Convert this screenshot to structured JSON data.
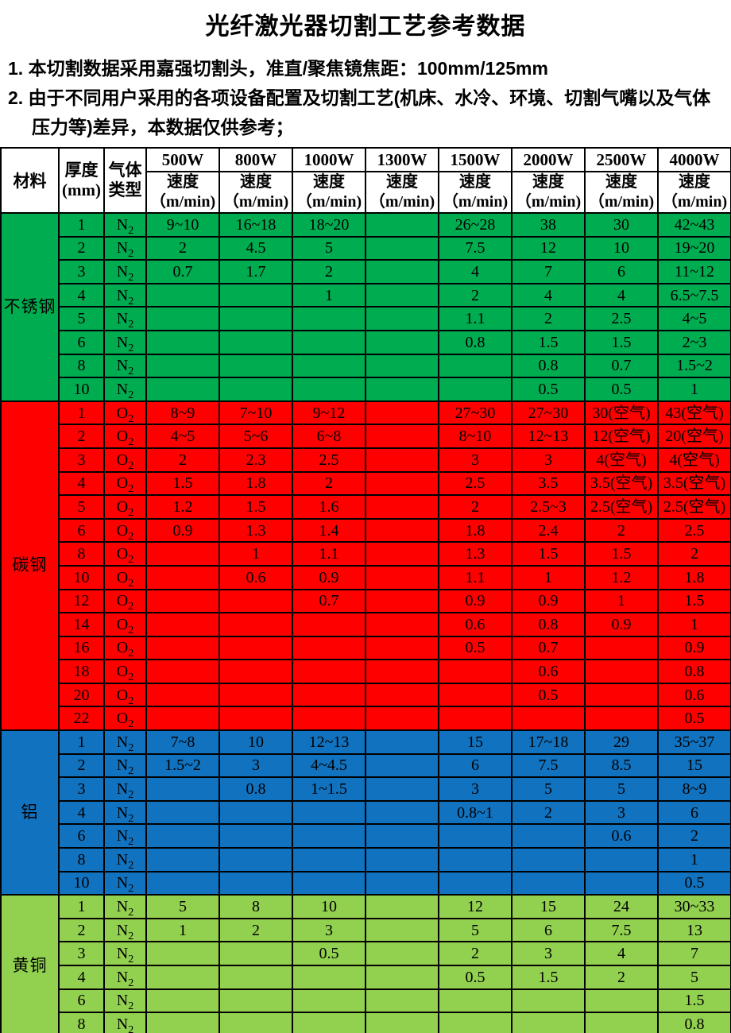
{
  "title": "光纤激光器切割工艺参考数据",
  "notes": [
    {
      "text": "1. 本切割数据采用嘉强切割头，准直/聚焦镜焦距：100mm/125mm"
    },
    {
      "text": "2. 由于不同用户采用的各项设备配置及切割工艺(机床、水冷、环境、切割气嘴以及气体压力等)差异，本数据仅供参考；"
    }
  ],
  "table": {
    "headers": {
      "material": "材料",
      "thickness_l1": "厚度",
      "thickness_l2": "(mm)",
      "gas_l1": "气体",
      "gas_l2": "类型"
    },
    "power_columns": [
      "500W",
      "800W",
      "1000W",
      "1300W",
      "1500W",
      "2000W",
      "2500W",
      "4000W"
    ],
    "speed_label": "速度",
    "speed_unit": "（m/min)",
    "materials": [
      {
        "name": "不锈钢",
        "color": "#00AC50",
        "gas_symbol": "N",
        "gas_subscript": "2",
        "rows": [
          {
            "thickness": "1",
            "speeds": [
              "9~10",
              "16~18",
              "18~20",
              "",
              "26~28",
              "38",
              "30",
              "42~43"
            ]
          },
          {
            "thickness": "2",
            "speeds": [
              "2",
              "4.5",
              "5",
              "",
              "7.5",
              "12",
              "10",
              "19~20"
            ]
          },
          {
            "thickness": "3",
            "speeds": [
              "0.7",
              "1.7",
              "2",
              "",
              "4",
              "7",
              "6",
              "11~12"
            ]
          },
          {
            "thickness": "4",
            "speeds": [
              "",
              "",
              "1",
              "",
              "2",
              "4",
              "4",
              "6.5~7.5"
            ]
          },
          {
            "thickness": "5",
            "speeds": [
              "",
              "",
              "",
              "",
              "1.1",
              "2",
              "2.5",
              "4~5"
            ]
          },
          {
            "thickness": "6",
            "speeds": [
              "",
              "",
              "",
              "",
              "0.8",
              "1.5",
              "1.5",
              "2~3"
            ]
          },
          {
            "thickness": "8",
            "speeds": [
              "",
              "",
              "",
              "",
              "",
              "0.8",
              "0.7",
              "1.5~2"
            ]
          },
          {
            "thickness": "10",
            "speeds": [
              "",
              "",
              "",
              "",
              "",
              "0.5",
              "0.5",
              "1"
            ]
          }
        ]
      },
      {
        "name": "碳钢",
        "color": "#FE0000",
        "gas_symbol": "O",
        "gas_subscript": "2",
        "rows": [
          {
            "thickness": "1",
            "speeds": [
              "8~9",
              "7~10",
              "9~12",
              "",
              "27~30",
              "27~30",
              "30(空气)",
              "43(空气)"
            ]
          },
          {
            "thickness": "2",
            "speeds": [
              "4~5",
              "5~6",
              "6~8",
              "",
              "8~10",
              "12~13",
              "12(空气)",
              "20(空气)"
            ]
          },
          {
            "thickness": "3",
            "speeds": [
              "2",
              "2.3",
              "2.5",
              "",
              "3",
              "3",
              "4(空气)",
              "4(空气)"
            ]
          },
          {
            "thickness": "4",
            "speeds": [
              "1.5",
              "1.8",
              "2",
              "",
              "2.5",
              "3.5",
              "3.5(空气)",
              "3.5(空气)"
            ]
          },
          {
            "thickness": "5",
            "speeds": [
              "1.2",
              "1.5",
              "1.6",
              "",
              "2",
              "2.5~3",
              "2.5(空气)",
              "2.5(空气)"
            ]
          },
          {
            "thickness": "6",
            "speeds": [
              "0.9",
              "1.3",
              "1.4",
              "",
              "1.8",
              "2.4",
              "2",
              "2.5"
            ]
          },
          {
            "thickness": "8",
            "speeds": [
              "",
              "1",
              "1.1",
              "",
              "1.3",
              "1.5",
              "1.5",
              "2"
            ]
          },
          {
            "thickness": "10",
            "speeds": [
              "",
              "0.6",
              "0.9",
              "",
              "1.1",
              "1",
              "1.2",
              "1.8"
            ]
          },
          {
            "thickness": "12",
            "speeds": [
              "",
              "",
              "0.7",
              "",
              "0.9",
              "0.9",
              "1",
              "1.5"
            ]
          },
          {
            "thickness": "14",
            "speeds": [
              "",
              "",
              "",
              "",
              "0.6",
              "0.8",
              "0.9",
              "1"
            ]
          },
          {
            "thickness": "16",
            "speeds": [
              "",
              "",
              "",
              "",
              "0.5",
              "0.7",
              "",
              "0.9"
            ]
          },
          {
            "thickness": "18",
            "speeds": [
              "",
              "",
              "",
              "",
              "",
              "0.6",
              "",
              "0.8"
            ]
          },
          {
            "thickness": "20",
            "speeds": [
              "",
              "",
              "",
              "",
              "",
              "0.5",
              "",
              "0.6"
            ]
          },
          {
            "thickness": "22",
            "speeds": [
              "",
              "",
              "",
              "",
              "",
              "",
              "",
              "0.5"
            ]
          }
        ]
      },
      {
        "name": "铝",
        "color": "#1172BF",
        "gas_symbol": "N",
        "gas_subscript": "2",
        "rows": [
          {
            "thickness": "1",
            "speeds": [
              "7~8",
              "10",
              "12~13",
              "",
              "15",
              "17~18",
              "29",
              "35~37"
            ]
          },
          {
            "thickness": "2",
            "speeds": [
              "1.5~2",
              "3",
              "4~4.5",
              "",
              "6",
              "7.5",
              "8.5",
              "15"
            ]
          },
          {
            "thickness": "3",
            "speeds": [
              "",
              "0.8",
              "1~1.5",
              "",
              "3",
              "5",
              "5",
              "8~9"
            ]
          },
          {
            "thickness": "4",
            "speeds": [
              "",
              "",
              "",
              "",
              "0.8~1",
              "2",
              "3",
              "6"
            ]
          },
          {
            "thickness": "6",
            "speeds": [
              "",
              "",
              "",
              "",
              "",
              "",
              "0.6",
              "2"
            ]
          },
          {
            "thickness": "8",
            "speeds": [
              "",
              "",
              "",
              "",
              "",
              "",
              "",
              "1"
            ]
          },
          {
            "thickness": "10",
            "speeds": [
              "",
              "",
              "",
              "",
              "",
              "",
              "",
              "0.5"
            ]
          }
        ]
      },
      {
        "name": "黄铜",
        "color": "#92D050",
        "gas_symbol": "N",
        "gas_subscript": "2",
        "rows": [
          {
            "thickness": "1",
            "speeds": [
              "5",
              "8",
              "10",
              "",
              "12",
              "15",
              "24",
              "30~33"
            ]
          },
          {
            "thickness": "2",
            "speeds": [
              "1",
              "2",
              "3",
              "",
              "5",
              "6",
              "7.5",
              "13"
            ]
          },
          {
            "thickness": "3",
            "speeds": [
              "",
              "",
              "0.5",
              "",
              "2",
              "3",
              "4",
              "7"
            ]
          },
          {
            "thickness": "4",
            "speeds": [
              "",
              "",
              "",
              "",
              "0.5",
              "1.5",
              "2",
              "5"
            ]
          },
          {
            "thickness": "6",
            "speeds": [
              "",
              "",
              "",
              "",
              "",
              "",
              "",
              "1.5"
            ]
          },
          {
            "thickness": "8",
            "speeds": [
              "",
              "",
              "",
              "",
              "",
              "",
              "",
              "0.8"
            ]
          }
        ]
      }
    ]
  }
}
